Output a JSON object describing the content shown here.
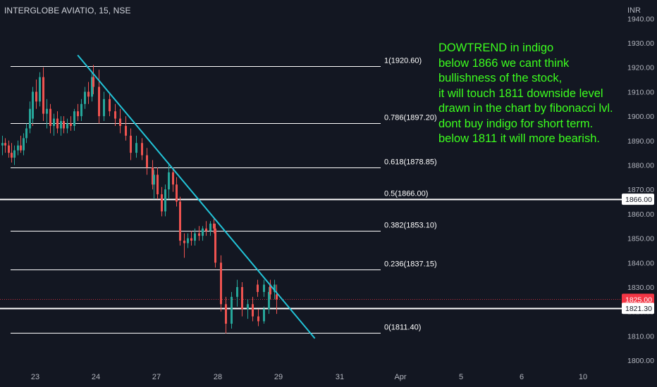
{
  "header": {
    "symbol": "INTERGLOBE AVIATIO, 15, NSE"
  },
  "annotation": {
    "lines": [
      "DOWTREND in indigo",
      "below 1866 we cant think",
      "bullishness of the stock,",
      "it will touch 1811 downside level",
      "drawn in the chart by fibonacci lvl.",
      "dont buy indigo for short term.",
      "below 1811 it will more bearish."
    ],
    "color": "#3cff1e"
  },
  "colors": {
    "background": "#131722",
    "up": "#26a69a",
    "down": "#ef5350",
    "fib_line": "#ffffff",
    "trendline": "#22c4d8",
    "axis_text": "#b2b5be",
    "price_badge": "#f23645"
  },
  "chart_data": {
    "type": "candlestick",
    "currency": "INR",
    "y_ticks": [
      1800,
      1810,
      1820,
      1830,
      1840,
      1850,
      1860,
      1870,
      1880,
      1890,
      1900,
      1910,
      1920,
      1930,
      1940
    ],
    "x_ticks": [
      "23",
      "24",
      "27",
      "28",
      "29",
      "31",
      "Apr",
      "5",
      "6",
      "10"
    ],
    "fib_levels": [
      {
        "label": "1(1920.60)",
        "value": 1920.6
      },
      {
        "label": "0.786(1897.20)",
        "value": 1897.2
      },
      {
        "label": "0.618(1878.85)",
        "value": 1878.85
      },
      {
        "label": "0.5(1866.00)",
        "value": 1866.0
      },
      {
        "label": "0.382(1853.10)",
        "value": 1853.1
      },
      {
        "label": "0.236(1837.15)",
        "value": 1837.15
      },
      {
        "label": "0(1811.40)",
        "value": 1811.4
      }
    ],
    "horizontal_lines": [
      {
        "value": 1866.0,
        "label": "1866.00"
      },
      {
        "value": 1821.3,
        "label": "1821.30"
      }
    ],
    "last_price": {
      "value": 1825.0,
      "label": "1825.00"
    },
    "trendline": [
      {
        "session": 23.7,
        "price": 1925.0
      },
      {
        "session": 29.6,
        "price": 1809.0
      }
    ],
    "sessions": [
      "23",
      "24",
      "27",
      "28",
      "29"
    ],
    "candles": [
      {
        "session": "22",
        "o": 1888,
        "h": 1892,
        "l": 1884,
        "c": 1889
      },
      {
        "session": "22",
        "o": 1889,
        "h": 1891,
        "l": 1885,
        "c": 1888
      },
      {
        "session": "22",
        "o": 1888,
        "h": 1890,
        "l": 1883,
        "c": 1885
      },
      {
        "session": "22",
        "o": 1885,
        "h": 1889,
        "l": 1881,
        "c": 1883
      },
      {
        "session": "22",
        "o": 1883,
        "h": 1888,
        "l": 1880,
        "c": 1886
      },
      {
        "session": "22",
        "o": 1886,
        "h": 1890,
        "l": 1884,
        "c": 1888
      },
      {
        "session": "22",
        "o": 1888,
        "h": 1892,
        "l": 1885,
        "c": 1886
      },
      {
        "session": "22",
        "o": 1886,
        "h": 1893,
        "l": 1884,
        "c": 1891
      },
      {
        "session": "22",
        "o": 1891,
        "h": 1897,
        "l": 1889,
        "c": 1895
      },
      {
        "session": "22",
        "o": 1895,
        "h": 1906,
        "l": 1893,
        "c": 1903
      },
      {
        "session": "22",
        "o": 1903,
        "h": 1908,
        "l": 1896,
        "c": 1899
      },
      {
        "session": "23",
        "o": 1899,
        "h": 1912,
        "l": 1897,
        "c": 1910
      },
      {
        "session": "23",
        "o": 1910,
        "h": 1915,
        "l": 1903,
        "c": 1906
      },
      {
        "session": "23",
        "o": 1906,
        "h": 1918,
        "l": 1904,
        "c": 1916
      },
      {
        "session": "23",
        "o": 1916,
        "h": 1920,
        "l": 1898,
        "c": 1901
      },
      {
        "session": "23",
        "o": 1901,
        "h": 1907,
        "l": 1895,
        "c": 1903
      },
      {
        "session": "23",
        "o": 1903,
        "h": 1905,
        "l": 1893,
        "c": 1896
      },
      {
        "session": "23",
        "o": 1896,
        "h": 1901,
        "l": 1892,
        "c": 1899
      },
      {
        "session": "23",
        "o": 1899,
        "h": 1902,
        "l": 1893,
        "c": 1895
      },
      {
        "session": "23",
        "o": 1895,
        "h": 1900,
        "l": 1892,
        "c": 1898
      },
      {
        "session": "23",
        "o": 1898,
        "h": 1900,
        "l": 1893,
        "c": 1895
      },
      {
        "session": "23",
        "o": 1895,
        "h": 1899,
        "l": 1893,
        "c": 1897
      },
      {
        "session": "23",
        "o": 1897,
        "h": 1900,
        "l": 1894,
        "c": 1896
      },
      {
        "session": "23",
        "o": 1896,
        "h": 1903,
        "l": 1894,
        "c": 1902
      },
      {
        "session": "23",
        "o": 1902,
        "h": 1905,
        "l": 1898,
        "c": 1900
      },
      {
        "session": "23",
        "o": 1900,
        "h": 1907,
        "l": 1898,
        "c": 1905
      },
      {
        "session": "23",
        "o": 1905,
        "h": 1912,
        "l": 1903,
        "c": 1910
      },
      {
        "session": "23",
        "o": 1910,
        "h": 1914,
        "l": 1905,
        "c": 1908
      },
      {
        "session": "23",
        "o": 1908,
        "h": 1918,
        "l": 1906,
        "c": 1916
      },
      {
        "session": "24",
        "o": 1916,
        "h": 1921,
        "l": 1909,
        "c": 1912
      },
      {
        "session": "24",
        "o": 1912,
        "h": 1919,
        "l": 1897,
        "c": 1900
      },
      {
        "session": "24",
        "o": 1900,
        "h": 1910,
        "l": 1898,
        "c": 1907
      },
      {
        "session": "24",
        "o": 1907,
        "h": 1909,
        "l": 1900,
        "c": 1902
      },
      {
        "session": "24",
        "o": 1902,
        "h": 1905,
        "l": 1896,
        "c": 1899
      },
      {
        "session": "24",
        "o": 1899,
        "h": 1903,
        "l": 1893,
        "c": 1896
      },
      {
        "session": "24",
        "o": 1896,
        "h": 1900,
        "l": 1890,
        "c": 1892
      },
      {
        "session": "24",
        "o": 1892,
        "h": 1895,
        "l": 1882,
        "c": 1885
      },
      {
        "session": "24",
        "o": 1885,
        "h": 1892,
        "l": 1883,
        "c": 1889
      },
      {
        "session": "24",
        "o": 1889,
        "h": 1891,
        "l": 1882,
        "c": 1884
      },
      {
        "session": "24",
        "o": 1884,
        "h": 1887,
        "l": 1876,
        "c": 1879
      },
      {
        "session": "24",
        "o": 1879,
        "h": 1882,
        "l": 1870,
        "c": 1872
      },
      {
        "session": "27",
        "o": 1872,
        "h": 1878,
        "l": 1866,
        "c": 1876
      },
      {
        "session": "27",
        "o": 1876,
        "h": 1879,
        "l": 1866,
        "c": 1868
      },
      {
        "session": "27",
        "o": 1868,
        "h": 1871,
        "l": 1859,
        "c": 1861
      },
      {
        "session": "27",
        "o": 1861,
        "h": 1872,
        "l": 1859,
        "c": 1870
      },
      {
        "session": "27",
        "o": 1870,
        "h": 1880,
        "l": 1866,
        "c": 1877
      },
      {
        "session": "27",
        "o": 1877,
        "h": 1879,
        "l": 1869,
        "c": 1872
      },
      {
        "session": "27",
        "o": 1872,
        "h": 1875,
        "l": 1863,
        "c": 1865
      },
      {
        "session": "27",
        "o": 1865,
        "h": 1867,
        "l": 1847,
        "c": 1849
      },
      {
        "session": "27",
        "o": 1849,
        "h": 1852,
        "l": 1842,
        "c": 1848
      },
      {
        "session": "27",
        "o": 1848,
        "h": 1852,
        "l": 1846,
        "c": 1850
      },
      {
        "session": "27",
        "o": 1850,
        "h": 1853,
        "l": 1847,
        "c": 1849
      },
      {
        "session": "27",
        "o": 1849,
        "h": 1854,
        "l": 1847,
        "c": 1852
      },
      {
        "session": "27",
        "o": 1852,
        "h": 1855,
        "l": 1849,
        "c": 1851
      },
      {
        "session": "27",
        "o": 1851,
        "h": 1855,
        "l": 1849,
        "c": 1854
      },
      {
        "session": "27",
        "o": 1854,
        "h": 1857,
        "l": 1851,
        "c": 1853
      },
      {
        "session": "27",
        "o": 1853,
        "h": 1857,
        "l": 1851,
        "c": 1856
      },
      {
        "session": "27",
        "o": 1856,
        "h": 1858,
        "l": 1852,
        "c": 1854
      },
      {
        "session": "28",
        "o": 1854,
        "h": 1856,
        "l": 1838,
        "c": 1840
      },
      {
        "session": "28",
        "o": 1840,
        "h": 1843,
        "l": 1820,
        "c": 1823
      },
      {
        "session": "28",
        "o": 1823,
        "h": 1826,
        "l": 1811,
        "c": 1815
      },
      {
        "session": "28",
        "o": 1815,
        "h": 1828,
        "l": 1813,
        "c": 1826
      },
      {
        "session": "28",
        "o": 1826,
        "h": 1833,
        "l": 1822,
        "c": 1830
      },
      {
        "session": "28",
        "o": 1830,
        "h": 1832,
        "l": 1818,
        "c": 1821
      },
      {
        "session": "28",
        "o": 1821,
        "h": 1825,
        "l": 1817,
        "c": 1823
      },
      {
        "session": "28",
        "o": 1823,
        "h": 1826,
        "l": 1816,
        "c": 1818
      },
      {
        "session": "28",
        "o": 1818,
        "h": 1821,
        "l": 1814,
        "c": 1816
      },
      {
        "session": "28",
        "o": 1816,
        "h": 1822,
        "l": 1815,
        "c": 1821
      },
      {
        "session": "28",
        "o": 1821,
        "h": 1830,
        "l": 1819,
        "c": 1828
      },
      {
        "session": "28",
        "o": 1828,
        "h": 1833,
        "l": 1825,
        "c": 1831
      },
      {
        "session": "29",
        "o": 1831,
        "h": 1833,
        "l": 1826,
        "c": 1828
      },
      {
        "session": "29",
        "o": 1828,
        "h": 1833,
        "l": 1826,
        "c": 1831
      },
      {
        "session": "29",
        "o": 1831,
        "h": 1833,
        "l": 1825,
        "c": 1827
      },
      {
        "session": "29",
        "o": 1827,
        "h": 1831,
        "l": 1819,
        "c": 1825
      }
    ]
  }
}
